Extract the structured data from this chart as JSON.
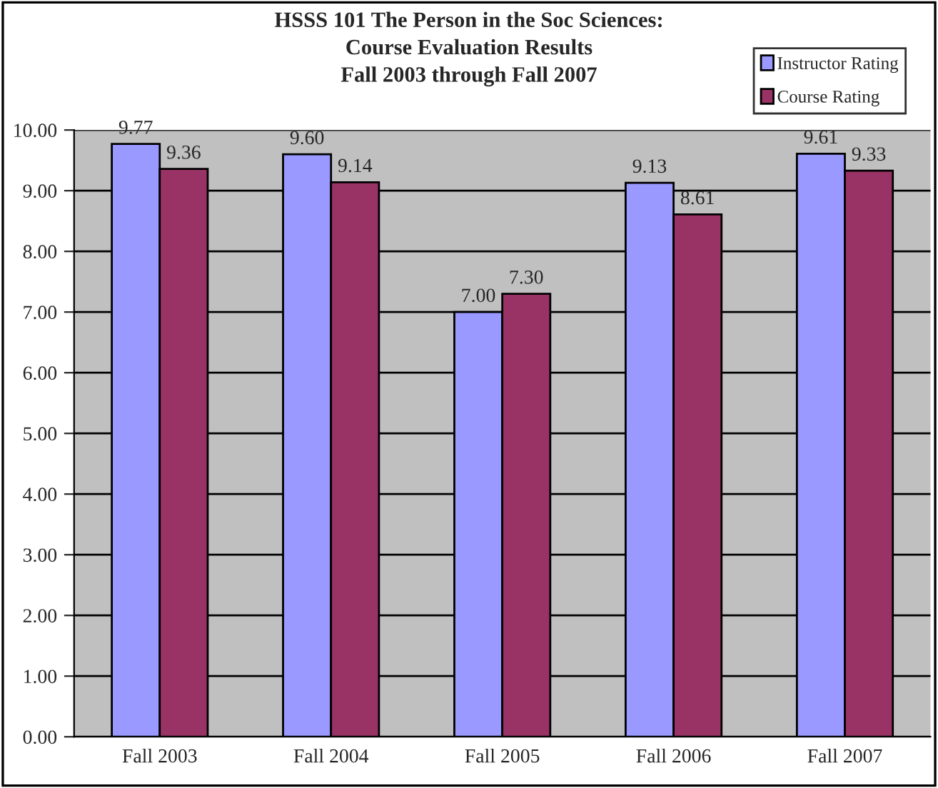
{
  "chart_data": {
    "type": "bar",
    "title": "HSSS 101 The Person in the Soc Sciences:\nCourse Evaluation Results\nFall 2003 through Fall 2007",
    "categories": [
      "Fall 2003",
      "Fall 2004",
      "Fall 2005",
      "Fall 2006",
      "Fall 2007"
    ],
    "series": [
      {
        "name": "Instructor Rating",
        "color": "#9999ff",
        "values": [
          9.77,
          9.6,
          7.0,
          9.13,
          9.61
        ],
        "value_labels": [
          "9.77",
          "9.60",
          "7.00",
          "9.13",
          "9.61"
        ]
      },
      {
        "name": "Course Rating",
        "color": "#993366",
        "values": [
          9.36,
          9.14,
          7.3,
          8.61,
          9.33
        ],
        "value_labels": [
          "9.36",
          "9.14",
          "7.30",
          "8.61",
          "9.33"
        ]
      }
    ],
    "ylim": [
      0,
      10
    ],
    "yticks": [
      {
        "value": 0,
        "label": "0.00"
      },
      {
        "value": 1,
        "label": "1.00"
      },
      {
        "value": 2,
        "label": "2.00"
      },
      {
        "value": 3,
        "label": "3.00"
      },
      {
        "value": 4,
        "label": "4.00"
      },
      {
        "value": 5,
        "label": "5.00"
      },
      {
        "value": 6,
        "label": "6.00"
      },
      {
        "value": 7,
        "label": "7.00"
      },
      {
        "value": 8,
        "label": "8.00"
      },
      {
        "value": 9,
        "label": "9.00"
      },
      {
        "value": 10,
        "label": "10.00"
      }
    ],
    "grid": "y",
    "legend": "top right"
  }
}
